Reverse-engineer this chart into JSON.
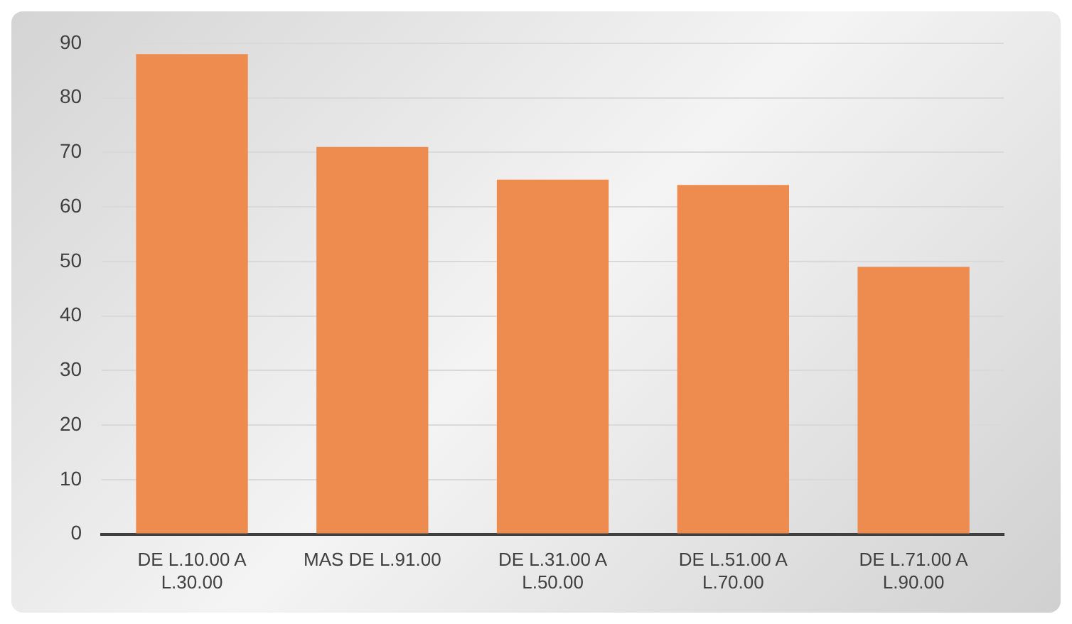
{
  "chart_data": {
    "type": "bar",
    "categories": [
      "DE L.10.00 A L.30.00",
      "MAS DE L.91.00",
      "DE L.31.00 A L.50.00",
      "DE L.51.00 A L.70.00",
      "DE L.71.00 A L.90.00"
    ],
    "values": [
      88,
      71,
      65,
      64,
      49
    ],
    "color": "#ed8c4e",
    "ylim": [
      0,
      90
    ],
    "yticks": [
      0,
      10,
      20,
      30,
      40,
      50,
      60,
      70,
      80,
      90
    ],
    "grid": "y"
  }
}
